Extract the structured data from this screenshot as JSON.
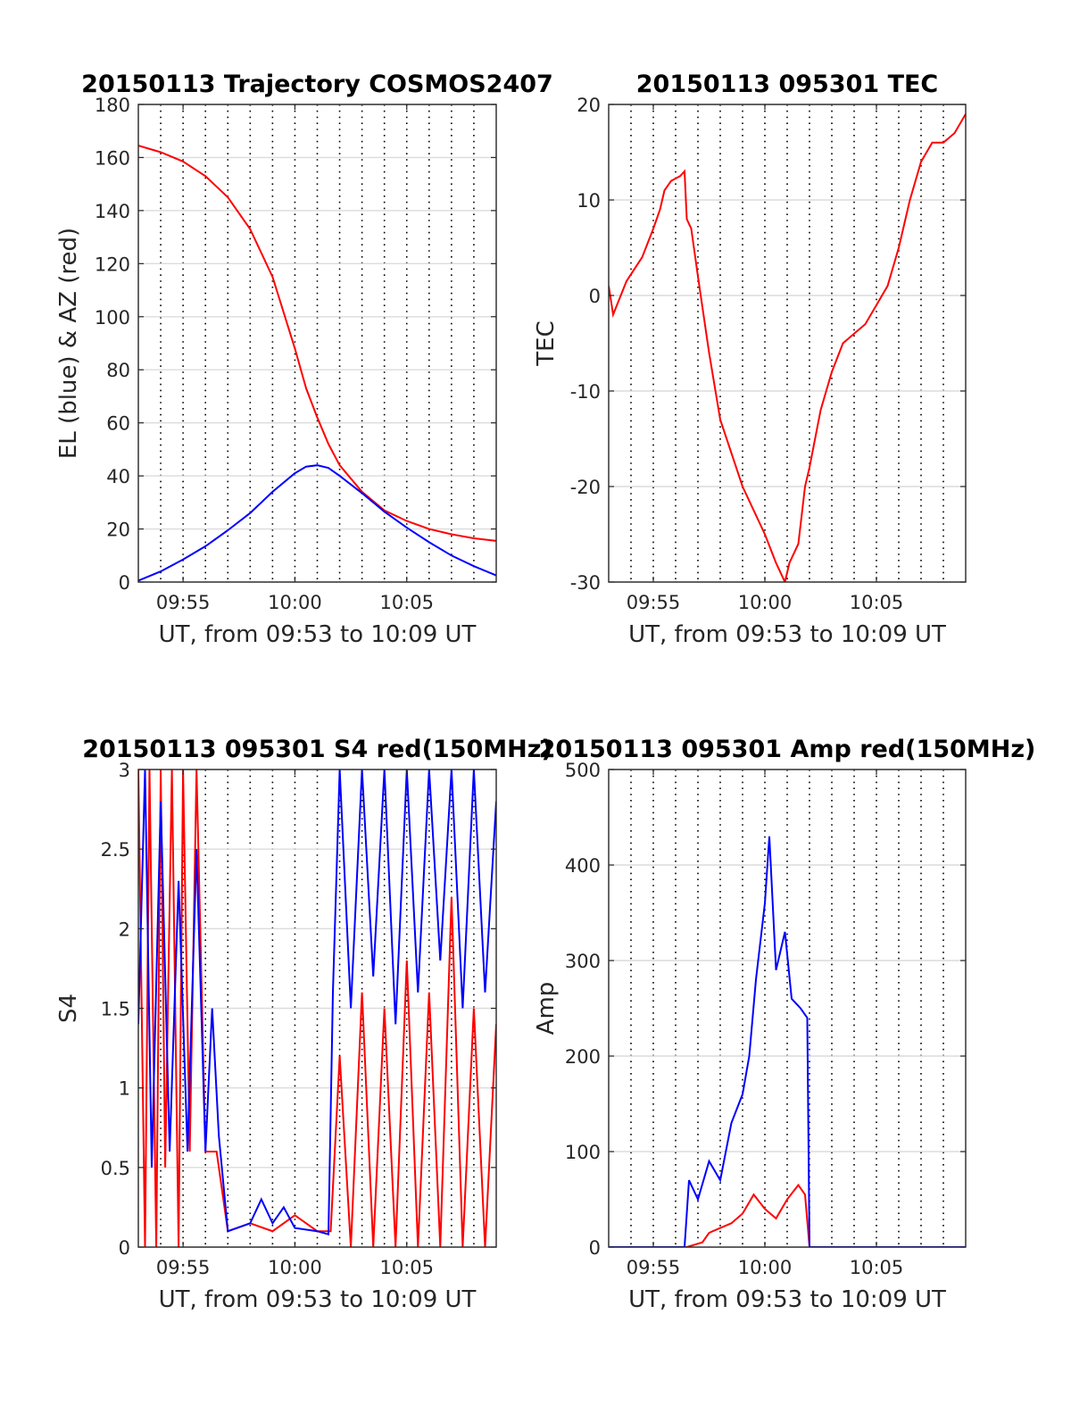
{
  "chart_data": [
    {
      "type": "line",
      "title": "20150113 Trajectory COSMOS2407",
      "xlabel": "UT, from 09:53 to 10:09 UT",
      "ylabel": "EL (blue) & AZ (red)",
      "xlim": [
        0,
        16
      ],
      "ylim": [
        0,
        180
      ],
      "xticks": [
        2,
        7,
        12
      ],
      "xtick_labels": [
        "09:55",
        "10:00",
        "10:05"
      ],
      "yticks": [
        0,
        20,
        40,
        60,
        80,
        100,
        120,
        140,
        160,
        180
      ],
      "ytick_labels": [
        "0",
        "20",
        "40",
        "60",
        "80",
        "100",
        "120",
        "140",
        "160",
        "180"
      ],
      "grid": true,
      "series": [
        {
          "color": "#ff0000",
          "x": [
            0,
            1,
            2,
            3,
            4,
            5,
            6,
            7,
            7.5,
            8,
            8.5,
            9,
            10,
            11,
            12,
            13,
            14,
            15,
            16
          ],
          "values": [
            164.5,
            162,
            158.5,
            153,
            145,
            133,
            115,
            88,
            73,
            62,
            52,
            44,
            34,
            27,
            23,
            20,
            18,
            16.5,
            15.5
          ]
        },
        {
          "color": "#0000ff",
          "x": [
            0,
            1,
            2,
            3,
            4,
            5,
            6,
            7,
            7.5,
            8,
            8.5,
            9,
            10,
            11,
            12,
            13,
            14,
            15,
            16
          ],
          "values": [
            0.5,
            4,
            8.5,
            13.5,
            19.5,
            26,
            34,
            41,
            43.5,
            44,
            43,
            40,
            33.5,
            26.5,
            20.5,
            15,
            10,
            6,
            2.5
          ]
        }
      ]
    },
    {
      "type": "line",
      "title": "20150113 095301 TEC",
      "xlabel": "UT, from 09:53 to 10:09 UT",
      "ylabel": "TEC",
      "xlim": [
        0,
        16
      ],
      "ylim": [
        -30,
        20
      ],
      "xticks": [
        2,
        7,
        12
      ],
      "xtick_labels": [
        "09:55",
        "10:00",
        "10:05"
      ],
      "yticks": [
        -30,
        -20,
        -10,
        0,
        10,
        20
      ],
      "ytick_labels": [
        "-30",
        "-20",
        "-10",
        "0",
        "10",
        "20"
      ],
      "grid": true,
      "series": [
        {
          "color": "#ff0000",
          "x": [
            0,
            0.2,
            0.8,
            1.5,
            2,
            2.3,
            2.5,
            2.8,
            3.2,
            3.4,
            3.5,
            3.7,
            4,
            4.5,
            5,
            6,
            7,
            7.5,
            7.9,
            8.1,
            8.3,
            8.5,
            8.8,
            9,
            9.5,
            10,
            10.5,
            11,
            11.5,
            12,
            12.5,
            13,
            13.5,
            14,
            14.5,
            15,
            15.5,
            16
          ],
          "values": [
            1,
            -2,
            1.5,
            4,
            7,
            9,
            11,
            12,
            12.5,
            13,
            8,
            7,
            2,
            -6,
            -13,
            -20,
            -25,
            -28,
            -30,
            -28,
            -27,
            -26,
            -20,
            -18,
            -12,
            -8,
            -5,
            -4,
            -3,
            -1,
            1,
            5,
            10,
            14,
            16,
            16,
            17,
            19
          ]
        }
      ]
    },
    {
      "type": "line",
      "title": "20150113 095301 S4 red(150MHz)",
      "xlabel": "UT, from 09:53 to 10:09 UT",
      "ylabel": "S4",
      "xlim": [
        0,
        16
      ],
      "ylim": [
        0,
        3
      ],
      "xticks": [
        2,
        7,
        12
      ],
      "xtick_labels": [
        "09:55",
        "10:00",
        "10:05"
      ],
      "yticks": [
        0,
        0.5,
        1,
        1.5,
        2,
        2.5,
        3
      ],
      "ytick_labels": [
        "0",
        "0.5",
        "1",
        "1.5",
        "2",
        "2.5",
        "3"
      ],
      "grid": true,
      "series": [
        {
          "color": "#ff0000",
          "x": [
            0,
            0.3,
            0.5,
            0.8,
            1.0,
            1.2,
            1.5,
            1.8,
            2.0,
            2.3,
            2.6,
            3.0,
            3.5,
            4.0,
            5.0,
            6.0,
            7.0,
            8.0,
            8.6,
            9.0,
            9.5,
            10.0,
            10.5,
            11.0,
            11.5,
            12.0,
            12.5,
            13.0,
            13.5,
            14.0,
            14.5,
            15.0,
            15.5,
            16.0
          ],
          "values": [
            3,
            0,
            3,
            0,
            3,
            0.5,
            3,
            0,
            3,
            0.6,
            3,
            0.6,
            0.6,
            0.1,
            0.15,
            0.1,
            0.2,
            0.1,
            0.1,
            1.2,
            0,
            1.6,
            0,
            1.5,
            0,
            1.8,
            0,
            1.6,
            0,
            2.2,
            0,
            1.5,
            0,
            1.4
          ]
        },
        {
          "color": "#0000ff",
          "x": [
            0,
            0.3,
            0.6,
            1.0,
            1.4,
            1.8,
            2.2,
            2.6,
            3.0,
            3.3,
            3.6,
            4.0,
            5.0,
            5.5,
            6.0,
            6.5,
            7.0,
            8.0,
            8.5,
            8.7,
            9.0,
            9.5,
            10.0,
            10.5,
            11.0,
            11.5,
            12.0,
            12.5,
            13.0,
            13.5,
            14.0,
            14.5,
            15.0,
            15.5,
            16.0
          ],
          "values": [
            1.4,
            3,
            0.5,
            2.8,
            0.6,
            2.3,
            0.6,
            2.5,
            0.6,
            1.5,
            0.7,
            0.1,
            0.15,
            0.3,
            0.15,
            0.25,
            0.12,
            0.1,
            0.08,
            1.6,
            3,
            1.5,
            3,
            1.7,
            3,
            1.4,
            3,
            1.6,
            3,
            1.8,
            3,
            1.5,
            3,
            1.6,
            2.8
          ]
        }
      ]
    },
    {
      "type": "line",
      "title": "20150113 095301 Amp red(150MHz)",
      "xlabel": "UT, from 09:53 to 10:09 UT",
      "ylabel": "Amp",
      "xlim": [
        0,
        16
      ],
      "ylim": [
        0,
        500
      ],
      "xticks": [
        2,
        7,
        12
      ],
      "xtick_labels": [
        "09:55",
        "10:00",
        "10:05"
      ],
      "yticks": [
        0,
        100,
        200,
        300,
        400,
        500
      ],
      "ytick_labels": [
        "0",
        "100",
        "200",
        "300",
        "400",
        "500"
      ],
      "grid": true,
      "series": [
        {
          "color": "#ff0000",
          "x": [
            0,
            3.5,
            4.2,
            4.5,
            5.0,
            5.5,
            6.0,
            6.5,
            7.0,
            7.5,
            8.0,
            8.5,
            8.8,
            9.0,
            16.0
          ],
          "values": [
            0,
            0,
            5,
            15,
            20,
            25,
            35,
            55,
            40,
            30,
            50,
            65,
            55,
            0,
            0
          ]
        },
        {
          "color": "#0000ff",
          "x": [
            0,
            3.4,
            3.6,
            4.0,
            4.5,
            5.0,
            5.5,
            6.0,
            6.3,
            6.6,
            7.0,
            7.2,
            7.5,
            7.9,
            8.2,
            8.6,
            8.9,
            9.0,
            16.0
          ],
          "values": [
            0,
            0,
            70,
            50,
            90,
            70,
            130,
            160,
            200,
            280,
            360,
            430,
            290,
            330,
            260,
            250,
            240,
            0,
            0
          ]
        }
      ]
    }
  ]
}
